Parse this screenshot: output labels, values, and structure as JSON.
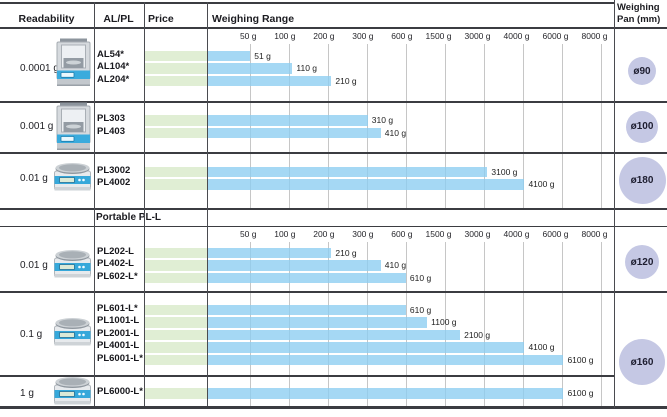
{
  "title_row": {
    "readability": "Readability",
    "model_series": "AL/PL",
    "price": "Price",
    "weighing_range": "Weighing Range",
    "pan_line1": "Weighing",
    "pan_line2": "Pan (mm)"
  },
  "portable_section_label": "Portable PL-L",
  "scale": {
    "tick_labels": [
      "50 g",
      "100 g",
      "200 g",
      "300 g",
      "600 g",
      "1500 g",
      "3000 g",
      "4000 g",
      "6000 g",
      "8000 g"
    ],
    "tick_values": [
      50,
      100,
      200,
      300,
      600,
      1500,
      3000,
      4000,
      6000,
      8000
    ]
  },
  "sections": [
    {
      "readability": "0.0001 g",
      "balance_image": "analytical-balance-draft-shield",
      "pan_diameter_label": "ø90",
      "products": [
        {
          "model": "AL54*",
          "capacity_label": "51 g",
          "capacity_g": 51
        },
        {
          "model": "AL104*",
          "capacity_label": "110 g",
          "capacity_g": 110
        },
        {
          "model": "AL204*",
          "capacity_label": "210 g",
          "capacity_g": 210
        }
      ]
    },
    {
      "readability": "0.001 g",
      "balance_image": "precision-balance-draft-shield",
      "pan_diameter_label": "ø100",
      "products": [
        {
          "model": "PL303",
          "capacity_label": "310 g",
          "capacity_g": 310
        },
        {
          "model": "PL403",
          "capacity_label": "410 g",
          "capacity_g": 410
        }
      ]
    },
    {
      "readability": "0.01 g",
      "balance_image": "precision-balance-compact",
      "pan_diameter_label": "ø180",
      "products": [
        {
          "model": "PL3002",
          "capacity_label": "3100 g",
          "capacity_g": 3100
        },
        {
          "model": "PL4002",
          "capacity_label": "4100 g",
          "capacity_g": 4100
        }
      ]
    },
    {
      "readability": "0.01 g",
      "balance_image": "portable-balance",
      "pan_diameter_label": "ø120",
      "products": [
        {
          "model": "PL202-L",
          "capacity_label": "210 g",
          "capacity_g": 210
        },
        {
          "model": "PL402-L",
          "capacity_label": "410 g",
          "capacity_g": 410
        },
        {
          "model": "PL602-L*",
          "capacity_label": "610 g",
          "capacity_g": 610
        }
      ]
    },
    {
      "readability": "0.1 g",
      "balance_image": "portable-balance",
      "pan_diameter_label": "ø160",
      "products": [
        {
          "model": "PL601-L*",
          "capacity_label": "610 g",
          "capacity_g": 610
        },
        {
          "model": "PL1001-L",
          "capacity_label": "1100 g",
          "capacity_g": 1100
        },
        {
          "model": "PL2001-L",
          "capacity_label": "2100 g",
          "capacity_g": 2100
        },
        {
          "model": "PL4001-L",
          "capacity_label": "4100 g",
          "capacity_g": 4100
        },
        {
          "model": "PL6001-L*",
          "capacity_label": "6100 g",
          "capacity_g": 6100
        }
      ]
    },
    {
      "readability": "1 g",
      "balance_image": "portable-balance",
      "pan_diameter_label": null,
      "products": [
        {
          "model": "PL6000-L*",
          "capacity_label": "6100 g",
          "capacity_g": 6100
        }
      ]
    }
  ],
  "chart_data": {
    "type": "bar",
    "orientation": "horizontal",
    "title": "Weighing Range",
    "axis_tick_values_g": [
      50,
      100,
      200,
      300,
      600,
      1500,
      3000,
      4000,
      6000,
      8000
    ],
    "axis_tick_labels": [
      "50 g",
      "100 g",
      "200 g",
      "300 g",
      "600 g",
      "1500 g",
      "3000 g",
      "4000 g",
      "6000 g",
      "8000 g"
    ],
    "axis_note": "non-linear axis: ticks evenly spaced, values interpolated between ticks",
    "grid": true,
    "categories": [
      "AL54*",
      "AL104*",
      "AL204*",
      "PL303",
      "PL403",
      "PL3002",
      "PL4002",
      "PL202-L",
      "PL402-L",
      "PL602-L*",
      "PL601-L*",
      "PL1001-L",
      "PL2001-L",
      "PL4001-L",
      "PL6001-L*",
      "PL6000-L*"
    ],
    "values_g": [
      51,
      110,
      210,
      310,
      410,
      3100,
      4100,
      210,
      410,
      610,
      610,
      1100,
      2100,
      4100,
      6100,
      6100
    ],
    "group_readability": [
      "0.0001 g",
      "0.0001 g",
      "0.0001 g",
      "0.001 g",
      "0.001 g",
      "0.01 g",
      "0.01 g",
      "0.01 g",
      "0.01 g",
      "0.01 g",
      "0.1 g",
      "0.1 g",
      "0.1 g",
      "0.1 g",
      "0.1 g",
      "1 g"
    ],
    "pan_diameters_mm": {
      "AL group": 90,
      "PL303/PL403": 100,
      "PL3002/PL4002": 180,
      "PL202-L group": 120,
      "PL601-L group": 160
    }
  },
  "colors": {
    "range_bar_fill": "#a9d9f2",
    "price_bar_fill": "#e0eed4",
    "pan_circle_fill": "#c5c8e4",
    "gridline": "#c6c6c6",
    "border_dark": "#3b3c41",
    "text": "#1b1b20",
    "balance_accent_blue": "#36a8da"
  }
}
